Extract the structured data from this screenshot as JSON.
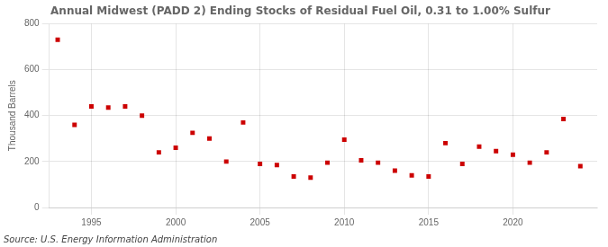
{
  "chart_data": {
    "type": "scatter",
    "title": "Annual Midwest (PADD 2) Ending Stocks of Residual Fuel Oil, 0.31 to 1.00% Sulfur",
    "y_label": "Thousand Barrels",
    "annotations": [
      "Source: U.S. Energy Information Administration"
    ],
    "x": [
      1993,
      1994,
      1995,
      1996,
      1997,
      1998,
      1999,
      2000,
      2001,
      2002,
      2003,
      2004,
      2005,
      2006,
      2007,
      2008,
      2009,
      2010,
      2011,
      2012,
      2013,
      2014,
      2015,
      2016,
      2017,
      2018,
      2019,
      2020,
      2021,
      2022,
      2023,
      2024
    ],
    "values": [
      730,
      360,
      440,
      435,
      440,
      400,
      240,
      260,
      325,
      300,
      200,
      370,
      190,
      185,
      135,
      130,
      195,
      295,
      205,
      195,
      160,
      140,
      135,
      280,
      190,
      265,
      245,
      230,
      195,
      240,
      385,
      180
    ],
    "color": "#cc0000",
    "marker": "square",
    "xlim": [
      1992.5,
      2025
    ],
    "xticks": [
      1995,
      2000,
      2005,
      2010,
      2015,
      2020
    ],
    "ylim": [
      0,
      800
    ],
    "yticks": [
      0,
      200,
      400,
      600,
      800
    ],
    "grid": true
  }
}
